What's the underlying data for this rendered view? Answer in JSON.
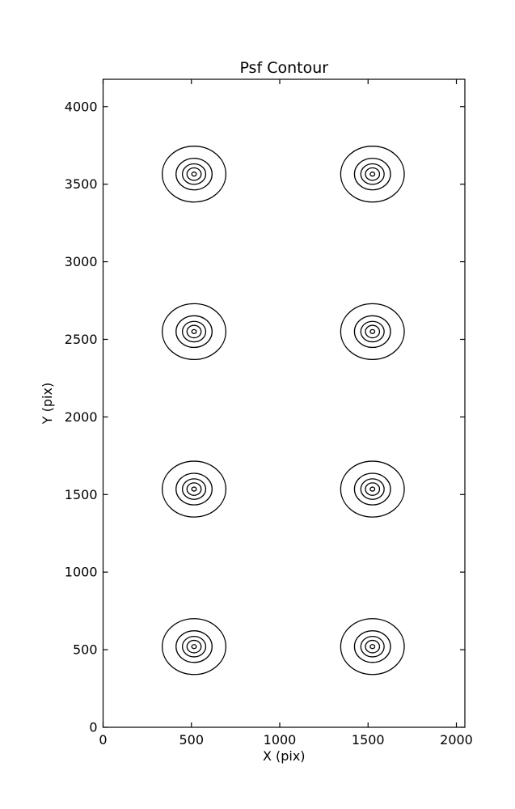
{
  "chart_data": {
    "type": "contour",
    "title": "Psf Contour",
    "xlabel": "X (pix)",
    "ylabel": "Y (pix)",
    "xlim": [
      0,
      2048
    ],
    "ylim": [
      0,
      4176
    ],
    "xticks": [
      0,
      500,
      1000,
      1500,
      2000
    ],
    "yticks": [
      0,
      500,
      1000,
      1500,
      2000,
      2500,
      3000,
      3500,
      4000
    ],
    "grid": false,
    "legend": false,
    "line_color": "#000000",
    "background_color": "#ffffff",
    "psf_centers": [
      {
        "x": 515,
        "y": 3565
      },
      {
        "x": 1525,
        "y": 3565
      },
      {
        "x": 515,
        "y": 2550
      },
      {
        "x": 1525,
        "y": 2550
      },
      {
        "x": 515,
        "y": 1535
      },
      {
        "x": 1525,
        "y": 1535
      },
      {
        "x": 515,
        "y": 520
      },
      {
        "x": 1525,
        "y": 520
      }
    ],
    "contour_radii_pix": [
      13,
      40,
      66,
      102,
      180
    ]
  }
}
